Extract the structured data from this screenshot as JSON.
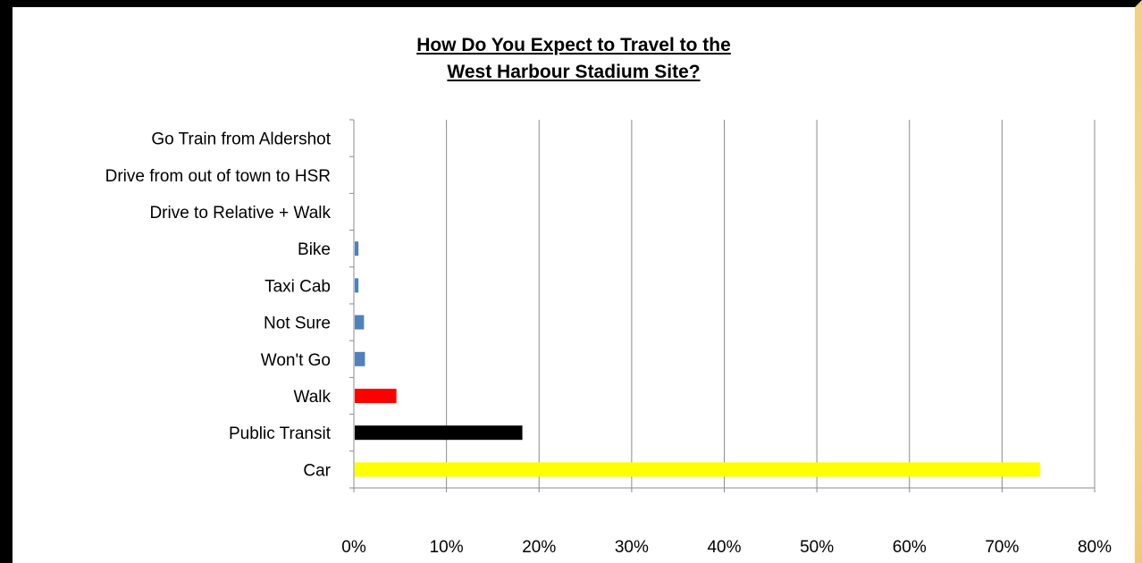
{
  "chart_data": {
    "type": "bar",
    "orientation": "horizontal",
    "title_line1": "How Do You Expect to Travel to the",
    "title_line2": "West Harbour Stadium Site?",
    "xlabel": "",
    "ylabel": "",
    "xlim": [
      0,
      80
    ],
    "x_ticks": [
      "0%",
      "10%",
      "20%",
      "30%",
      "40%",
      "50%",
      "60%",
      "70%",
      "80%"
    ],
    "grid": "vertical major gridlines on",
    "legend": "none",
    "categories": [
      "Go Train from Aldershot",
      "Drive from out of town to HSR",
      "Drive to Relative + Walk",
      "Bike",
      "Taxi Cab",
      "Not Sure",
      "Won't Go",
      "Walk",
      "Public Transit",
      "Car"
    ],
    "values": [
      0,
      0,
      0,
      0.4,
      0.4,
      1.0,
      1.1,
      4.5,
      18.1,
      74.0
    ],
    "colors": [
      "#4f81bd",
      "#4f81bd",
      "#4f81bd",
      "#4f81bd",
      "#4f81bd",
      "#4f81bd",
      "#4f81bd",
      "#ff0000",
      "#000000",
      "#ffff00"
    ]
  }
}
